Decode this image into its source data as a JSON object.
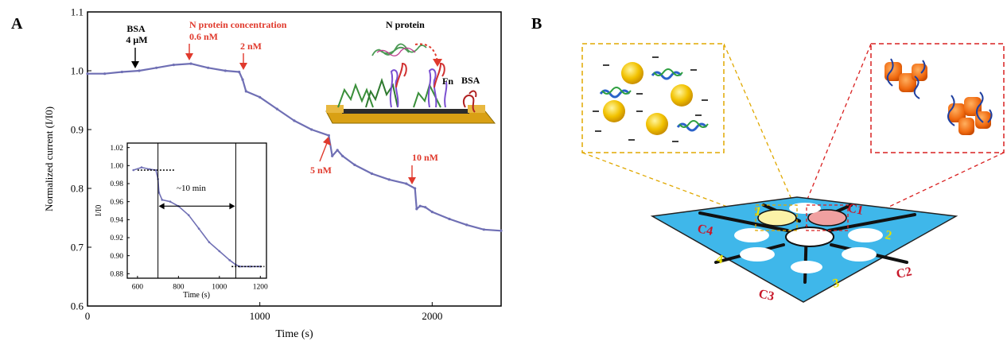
{
  "panel_a": {
    "letter": "A",
    "chart_data": {
      "type": "line",
      "xlabel": "Time (s)",
      "ylabel": "Normalized current (I/I0)",
      "xlim": [
        0,
        2400
      ],
      "ylim": [
        0.6,
        1.1
      ],
      "xticks": [
        0,
        1000,
        2000
      ],
      "xtick_labels": [
        "0",
        "1000",
        "2000"
      ],
      "yticks": [
        0.6,
        0.7,
        0.8,
        0.9,
        1.0,
        1.1
      ],
      "ytick_labels": [
        "0.6",
        "0.7",
        "0.8",
        "0.9",
        "1.0",
        "1.1"
      ],
      "series": [
        {
          "color": "#6f6fb4",
          "x": [
            0,
            100,
            200,
            300,
            400,
            500,
            600,
            700,
            800,
            880,
            900,
            920,
            1000,
            1100,
            1200,
            1300,
            1400,
            1420,
            1450,
            1480,
            1550,
            1650,
            1750,
            1850,
            1900,
            1910,
            1930,
            1960,
            2000,
            2100,
            2200,
            2300,
            2400
          ],
          "y": [
            0.995,
            0.995,
            0.998,
            1.0,
            1.005,
            1.01,
            1.012,
            1.005,
            1.0,
            0.998,
            0.985,
            0.965,
            0.955,
            0.935,
            0.915,
            0.9,
            0.89,
            0.855,
            0.865,
            0.855,
            0.84,
            0.825,
            0.815,
            0.808,
            0.8,
            0.765,
            0.77,
            0.768,
            0.76,
            0.748,
            0.738,
            0.73,
            0.728
          ]
        }
      ],
      "annotations": [
        {
          "text_lines": [
            "BSA",
            "4 μM"
          ],
          "x": 260,
          "color": "#000000"
        },
        {
          "text_lines": [
            "N protein concentration",
            "0.6 nM"
          ],
          "x": 610,
          "color": "#e0392c"
        },
        {
          "text_lines": [
            "2 nM"
          ],
          "x": 900,
          "color": "#e0392c"
        },
        {
          "text_lines": [
            "5 nM"
          ],
          "x": 1410,
          "color": "#e0392c"
        },
        {
          "text_lines": [
            "10 nM"
          ],
          "x": 1900,
          "color": "#e0392c"
        }
      ],
      "illustration_labels": {
        "n_protein": "N protein",
        "fn": "Fn",
        "bsa": "BSA"
      },
      "inset": {
        "type": "line",
        "xlabel": "Time (s)",
        "ylabel": "I/I0",
        "xlim": [
          550,
          1230
        ],
        "ylim": [
          0.875,
          1.025
        ],
        "xticks": [
          600,
          800,
          1000,
          1200
        ],
        "xtick_labels": [
          "600",
          "800",
          "1000",
          "1200"
        ],
        "yticks": [
          0.88,
          0.9,
          0.92,
          0.94,
          0.96,
          0.98,
          1.0,
          1.02
        ],
        "ytick_labels": [
          "0.88",
          "0.90",
          "0.92",
          "0.94",
          "0.96",
          "0.98",
          "1.00",
          "1.02"
        ],
        "annotation": "~10 min",
        "series": [
          {
            "color": "#6f6fb4",
            "x": [
              580,
              620,
              660,
              690,
              700,
              705,
              720,
              760,
              800,
              850,
              900,
              950,
              1000,
              1050,
              1080,
              1100,
              1150,
              1200
            ],
            "y": [
              0.995,
              0.998,
              0.996,
              0.995,
              0.985,
              0.97,
              0.962,
              0.96,
              0.955,
              0.945,
              0.93,
              0.915,
              0.905,
              0.895,
              0.89,
              0.888,
              0.888,
              0.888
            ]
          }
        ]
      }
    }
  },
  "panel_b": {
    "letter": "B",
    "sensor_labels": [
      "C1",
      "2",
      "C2",
      "3",
      "C3",
      "4",
      "C4",
      "1"
    ]
  }
}
